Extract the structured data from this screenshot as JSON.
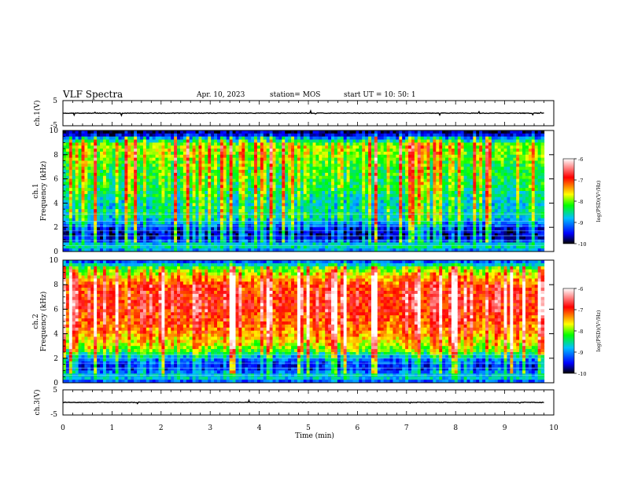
{
  "header": {
    "title": "VLF Spectra",
    "date": "Apr. 10, 2023",
    "station": "station= MOS",
    "start_ut": "start  UT =   10: 50: 1"
  },
  "colors": {
    "colormap": [
      "#000000",
      "#0000ff",
      "#00bfff",
      "#00ff00",
      "#ffff00",
      "#ff0000",
      "#ffffff"
    ],
    "frame": "#000000",
    "trace": "#000000"
  },
  "chart_data": [
    {
      "type": "line",
      "panel": "ch1-waveform",
      "ylabel": "ch.1(V)",
      "ylim": [
        -5,
        5
      ],
      "yticks": [
        "5",
        "-5"
      ],
      "x": [
        0,
        10
      ],
      "values": [
        0,
        0
      ],
      "note_values": "near-constant trace at ~0 V with small spikes"
    },
    {
      "type": "heatmap",
      "panel": "ch1-spectrogram",
      "ylabel_lines": [
        "ch.1",
        "Frequency (kHz)"
      ],
      "ylim": [
        0,
        10
      ],
      "yticks": [
        "0",
        "2",
        "4",
        "6",
        "8",
        "10"
      ],
      "xlim": [
        0,
        9.8
      ],
      "colorbar": {
        "label": "log(PSD)(V²/Hz)",
        "ticks": [
          "-6",
          "-7",
          "-8",
          "-9",
          "-10"
        ],
        "range": [
          -10,
          -6
        ]
      },
      "level_profile": {
        "freq_khz": [
          0,
          0.5,
          1,
          1.5,
          2,
          2.5,
          3,
          4,
          5,
          6,
          7,
          8,
          8.8,
          9.5,
          10
        ],
        "log_psd": [
          -9.2,
          -8.5,
          -9.6,
          -9.7,
          -9.4,
          -8.9,
          -8.6,
          -8.7,
          -8.4,
          -8.3,
          -8.2,
          -8.0,
          -7.9,
          -9.4,
          -10
        ]
      }
    },
    {
      "type": "heatmap",
      "panel": "ch2-spectrogram",
      "ylabel_lines": [
        "ch.2",
        "Frequency (kHz)"
      ],
      "ylim": [
        0,
        10
      ],
      "yticks": [
        "0",
        "2",
        "4",
        "6",
        "8",
        "10"
      ],
      "xlim": [
        0,
        9.8
      ],
      "colorbar": {
        "label": "log(PSD)(V²/Hz)",
        "ticks": [
          "-6",
          "-7",
          "-8",
          "-9",
          "-10"
        ],
        "range": [
          -10,
          -6
        ]
      },
      "level_profile": {
        "freq_khz": [
          0,
          0.5,
          1,
          1.5,
          2,
          2.5,
          3,
          4,
          5,
          6,
          7,
          8,
          9,
          9.5,
          10
        ],
        "log_psd": [
          -9.4,
          -8.6,
          -9.3,
          -9.4,
          -9.0,
          -8.2,
          -7.8,
          -7.4,
          -7.1,
          -6.9,
          -6.9,
          -7.1,
          -7.8,
          -8.4,
          -9.5
        ]
      }
    },
    {
      "type": "line",
      "panel": "ch3-waveform",
      "ylabel": "ch.3(V)",
      "ylim": [
        -5,
        5
      ],
      "yticks": [
        "5",
        "-5"
      ],
      "x": [
        0,
        10
      ],
      "values": [
        0,
        0
      ],
      "note_values": "near-constant trace at ~0 V"
    }
  ],
  "xaxis": {
    "label": "Time  (min)",
    "ticks": [
      "0",
      "1",
      "2",
      "3",
      "4",
      "5",
      "6",
      "7",
      "8",
      "9",
      "10"
    ],
    "range": [
      0,
      10
    ]
  }
}
